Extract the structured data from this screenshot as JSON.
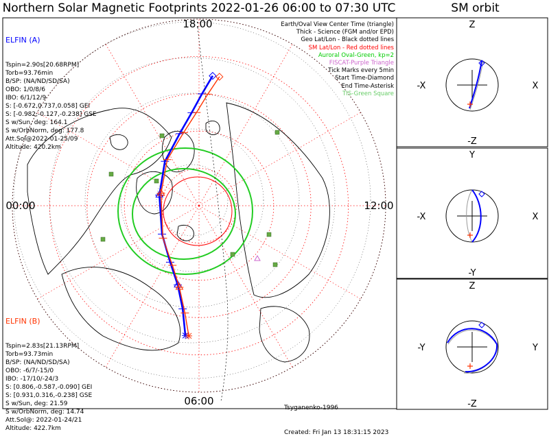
{
  "title": "Northern Solar Magnetic Footprints 2022-01-26 06:00 to 07:30 UTC",
  "orbit_title": "SM orbit",
  "map": {
    "mlt_labels": {
      "top": "18:00",
      "left": "00:00",
      "right": "12:00",
      "bottom": "06:00"
    }
  },
  "elfin_a": {
    "header": "ELFIN (A)",
    "color": "#0000ff",
    "lines": [
      "Tspin=2.90s[20.68RPM]",
      "Torb=93.76min",
      "B/SP: (NA/ND/SD/SA)",
      "OBO: 1/0/8/6",
      "IBO: 6/1/12/9",
      "S: [-0.672,0.737,0.058] GEI",
      "S: [-0.982,-0.127,-0.238] GSE",
      "S w/Sun, deg: 164.1",
      "S w/OrbNorm, deg: 177.8",
      "Att.Sol@2022-01-25/09",
      "Altitude: 420.2km"
    ]
  },
  "elfin_b": {
    "header": "ELFIN (B)",
    "color": "#ff3300",
    "lines": [
      "Tspin=2.83s[21.13RPM]",
      "Torb=93.73min",
      "B/SP: (NA/ND/SD/SA)",
      "OBO: -6/7/-15/0",
      "IBO: -17/10/-24/3",
      "S: [0.806,-0.587,-0.090] GEI",
      "S: [0.931,0.316,-0.238] GSE",
      "S w/Sun, deg: 21.59",
      "S w/OrbNorm, deg: 14.74",
      "Att.Sol@: 2022-01-24/21",
      "Altitude: 422.7km"
    ]
  },
  "legend": [
    {
      "text": "Earth/Oval View Center Time (triangle)",
      "color": "#000000"
    },
    {
      "text": "Thick - Science (FGM and/or EPD)",
      "color": "#000000"
    },
    {
      "text": "Geo Lat/Lon - Black dotted lines",
      "color": "#000000"
    },
    {
      "text": "SM Lat/Lon - Red dotted lines",
      "color": "#ff0000"
    },
    {
      "text": "Auroral Oval-Green, kp=2",
      "color": "#00cc00"
    },
    {
      "text": "FISCAT-Purple Triangle",
      "color": "#cc66cc"
    },
    {
      "text": "Tick Marks every 5min",
      "color": "#000000"
    },
    {
      "text": "Start Time-Diamond",
      "color": "#000000"
    },
    {
      "text": "End Time-Asterisk",
      "color": "#000000"
    },
    {
      "text": "TIS-Green Square",
      "color": "#66cc66"
    }
  ],
  "credits": {
    "line1": "Tsyganenko-1996",
    "line2": "Created: Fri Jan 13 18:31:15 2023"
  },
  "orbit_panels": [
    {
      "name": "xz",
      "top": "Z",
      "bottom": "-Z",
      "left": "-X",
      "right": "X"
    },
    {
      "name": "xy",
      "top": "Y",
      "bottom": "-Y",
      "left": "-X",
      "right": "X"
    },
    {
      "name": "yz",
      "top": "Z",
      "bottom": "-Z",
      "left": "-Y",
      "right": "Y"
    }
  ],
  "chart_data": [
    {
      "type": "line",
      "title": "Northern Solar Magnetic Footprints 2022-01-26 06:00 to 07:30 UTC",
      "projection": "polar (SM coordinates), north pole at center, MLT around edge",
      "mlt_ticks": [
        "18:00",
        "00:00",
        "06:00",
        "12:00"
      ],
      "series": [
        {
          "name": "ELFIN (A)",
          "color": "#0000ff",
          "mlt": [
            17.6,
            17.9,
            18.3,
            19.0,
            20.5,
            23.0,
            2.5,
            4.2,
            5.0,
            5.4,
            5.6
          ],
          "mlat": [
            55.0,
            60.0,
            65.0,
            70.0,
            75.0,
            79.0,
            77.5,
            73.0,
            68.0,
            62.0,
            55.0
          ]
        },
        {
          "name": "ELFIN (B)",
          "color": "#ff3300",
          "mlt": [
            17.4,
            17.7,
            18.1,
            18.8,
            20.3,
            22.8,
            2.8,
            4.4,
            5.1,
            5.5,
            5.7
          ],
          "mlat": [
            55.0,
            60.0,
            65.0,
            70.0,
            75.0,
            79.3,
            77.0,
            72.5,
            67.5,
            61.0,
            55.0
          ]
        }
      ],
      "auroral_oval_kp": 2
    }
  ]
}
